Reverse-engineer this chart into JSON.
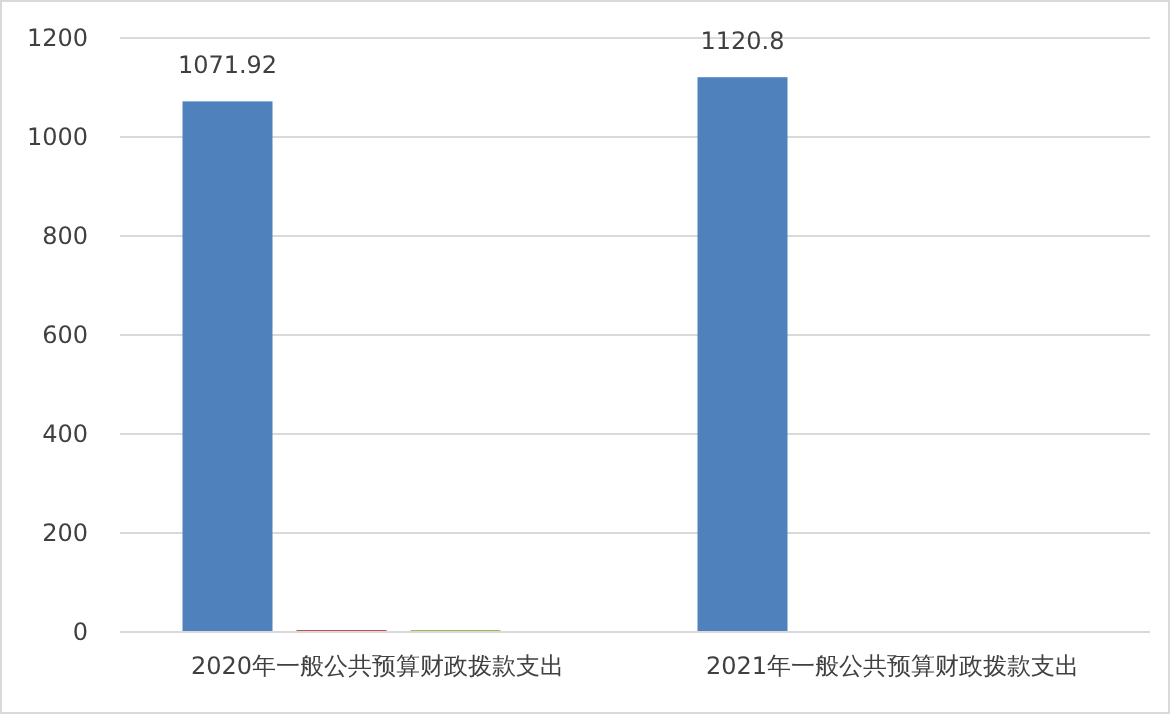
{
  "chart_data": {
    "type": "bar",
    "categories": [
      "2020年一般公共预算财政拨款支出",
      "2021年一般公共预算财政拨款支出"
    ],
    "series": [
      {
        "color": "#4f81bd",
        "values": [
          1071.92,
          1120.8
        ],
        "value_labels": [
          "1071.92",
          "1120.8"
        ]
      },
      {
        "color": "#c0504d",
        "values": [
          4,
          null
        ]
      },
      {
        "color": "#9bbb59",
        "values": [
          4,
          null
        ]
      }
    ],
    "ylim": [
      0,
      1200
    ],
    "yticks": [
      0,
      200,
      400,
      600,
      800,
      1000,
      1200
    ],
    "grid": "y"
  }
}
